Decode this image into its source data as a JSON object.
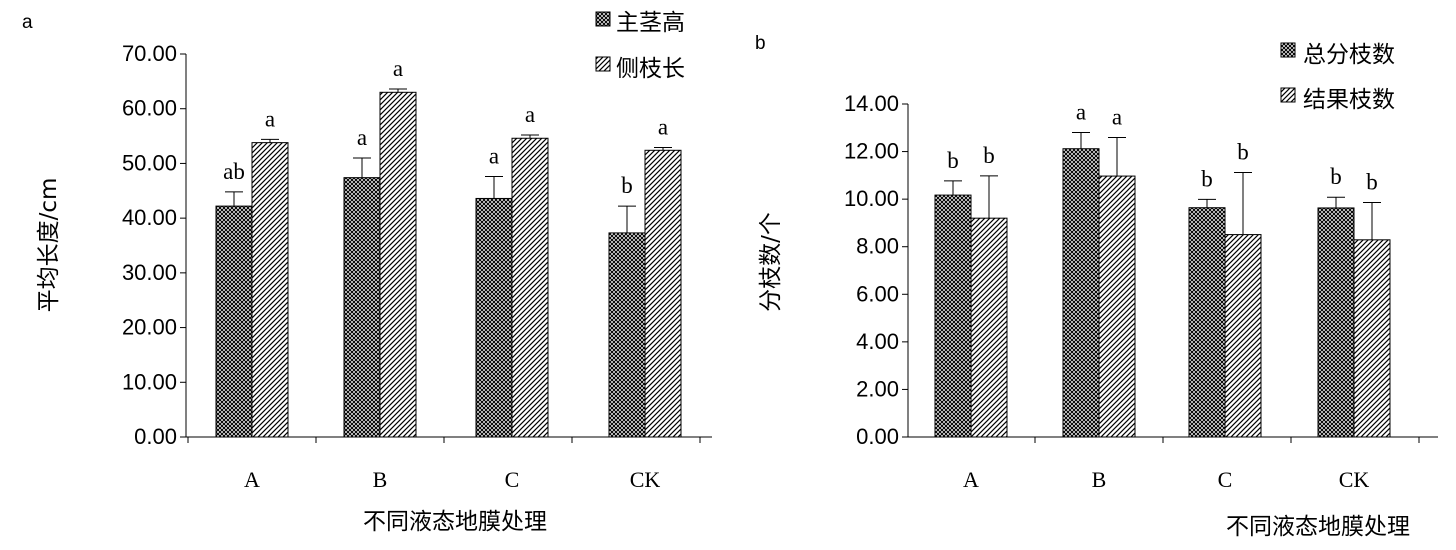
{
  "chart_data": [
    {
      "type": "bar",
      "panel_label": "a",
      "categories": [
        "A",
        "B",
        "C",
        "CK"
      ],
      "series": [
        {
          "name": "主茎高",
          "values": [
            42.2,
            47.4,
            43.6,
            37.3
          ],
          "errors": [
            2.6,
            3.6,
            4.0,
            4.9
          ],
          "labels": [
            "ab",
            "a",
            "a",
            "b"
          ]
        },
        {
          "name": "侧枝长",
          "values": [
            53.8,
            63.0,
            54.6,
            52.4
          ],
          "errors": [
            0.6,
            0.6,
            0.6,
            0.5
          ],
          "labels": [
            "a",
            "a",
            "a",
            "a"
          ]
        }
      ],
      "xlabel": "不同液态地膜处理",
      "ylabel": "平均长度/cm",
      "ylim": [
        0,
        70
      ],
      "yticks": [
        "0.00",
        "10.00",
        "20.00",
        "30.00",
        "40.00",
        "50.00",
        "60.00",
        "70.00"
      ],
      "legend_position": "top-right",
      "grid": false
    },
    {
      "type": "bar",
      "panel_label": "b",
      "categories": [
        "A",
        "B",
        "C",
        "CK"
      ],
      "series": [
        {
          "name": "总分枝数",
          "values": [
            10.17,
            12.12,
            9.64,
            9.63
          ],
          "errors": [
            0.6,
            0.68,
            0.35,
            0.45
          ],
          "labels": [
            "b",
            "a",
            "b",
            "b"
          ]
        },
        {
          "name": "结果枝数",
          "values": [
            9.2,
            10.97,
            8.51,
            8.29
          ],
          "errors": [
            1.78,
            1.62,
            2.61,
            1.57
          ],
          "labels": [
            "b",
            "a",
            "b",
            "b"
          ]
        }
      ],
      "xlabel": "不同液态地膜处理",
      "ylabel": "分枝数/个",
      "ylim": [
        0,
        14
      ],
      "yticks": [
        "0.00",
        "2.00",
        "4.00",
        "6.00",
        "8.00",
        "10.00",
        "12.00",
        "14.00"
      ],
      "legend_position": "top-right",
      "grid": false
    }
  ]
}
